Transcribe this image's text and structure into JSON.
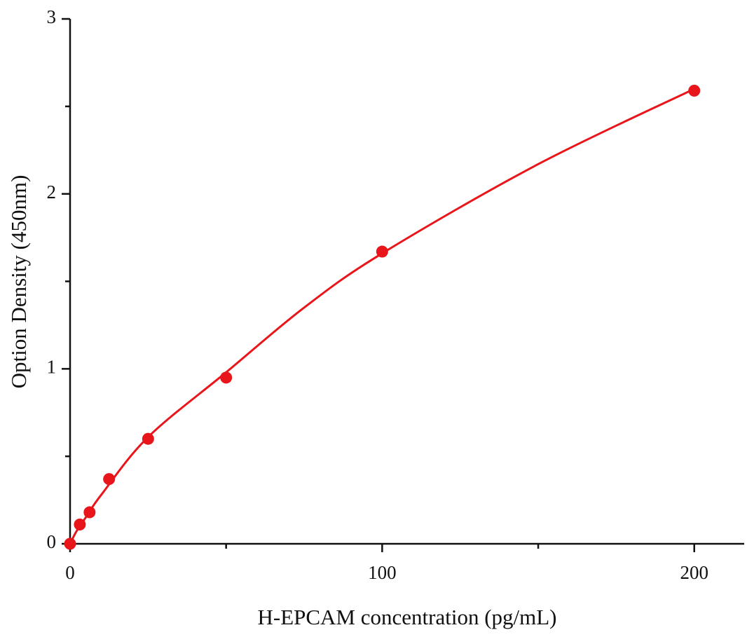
{
  "chart_data": {
    "type": "scatter",
    "xlabel": "H-EPCAM concentration (pg/mL)",
    "ylabel": "Option Density (450nm)",
    "xlim": [
      0,
      216
    ],
    "ylim": [
      0,
      3
    ],
    "xticks": [
      0,
      100,
      200
    ],
    "xminor_ticks": [
      50,
      150
    ],
    "yticks": [
      0,
      1,
      2,
      3
    ],
    "yminor_ticks": [
      0.5,
      1.5,
      2.5
    ],
    "series": [
      {
        "style": "points",
        "color": "#e8161b",
        "x": [
          0,
          3.125,
          6.25,
          12.5,
          25,
          50,
          100,
          200
        ],
        "values": [
          0,
          0.11,
          0.18,
          0.37,
          0.6,
          0.95,
          1.67,
          2.59
        ]
      },
      {
        "style": "line",
        "color": "#e8161b",
        "x": [
          0,
          2,
          5,
          10,
          25,
          50,
          75,
          100,
          150,
          200
        ],
        "values": [
          0,
          0.07,
          0.15,
          0.28,
          0.61,
          0.98,
          1.35,
          1.66,
          2.17,
          2.6
        ]
      }
    ]
  }
}
